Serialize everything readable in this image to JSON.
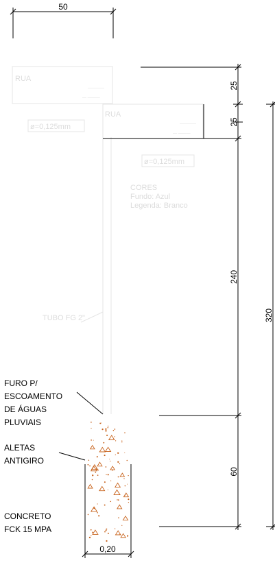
{
  "dimensions": {
    "sign_width": "50",
    "top_plate_height": "25",
    "second_plate_height": "25",
    "pole_height": "240",
    "total_height": "320",
    "foundation_depth": "60",
    "foundation_width": "0,20"
  },
  "plates": {
    "top_label": "RUA",
    "second_label": "RUA",
    "top_lines": [
      "————",
      "— ———"
    ],
    "second_lines": [
      "————",
      "— ———"
    ]
  },
  "notes": {
    "thickness_top": "ø=0,125mm",
    "thickness_mid": "ø=0,125mm",
    "colors_title": "CORES",
    "colors_bg": "Fundo: Azul",
    "colors_legend": "Legenda: Branco",
    "tube": "TUBO FG 2\""
  },
  "callouts": {
    "drain_hole": [
      "FURO P/",
      "ESCOAMENTO",
      "DE ÁGUAS",
      "PLUVIAIS"
    ],
    "fins": [
      "ALETAS",
      "ANTIGIRO"
    ],
    "concrete": [
      "CONCRETO",
      "FCK 15 MPA"
    ]
  },
  "colors": {
    "linework": "#000000",
    "ghost_geometry": "#e4e4e4",
    "concrete_hatch": "#c8641e"
  }
}
